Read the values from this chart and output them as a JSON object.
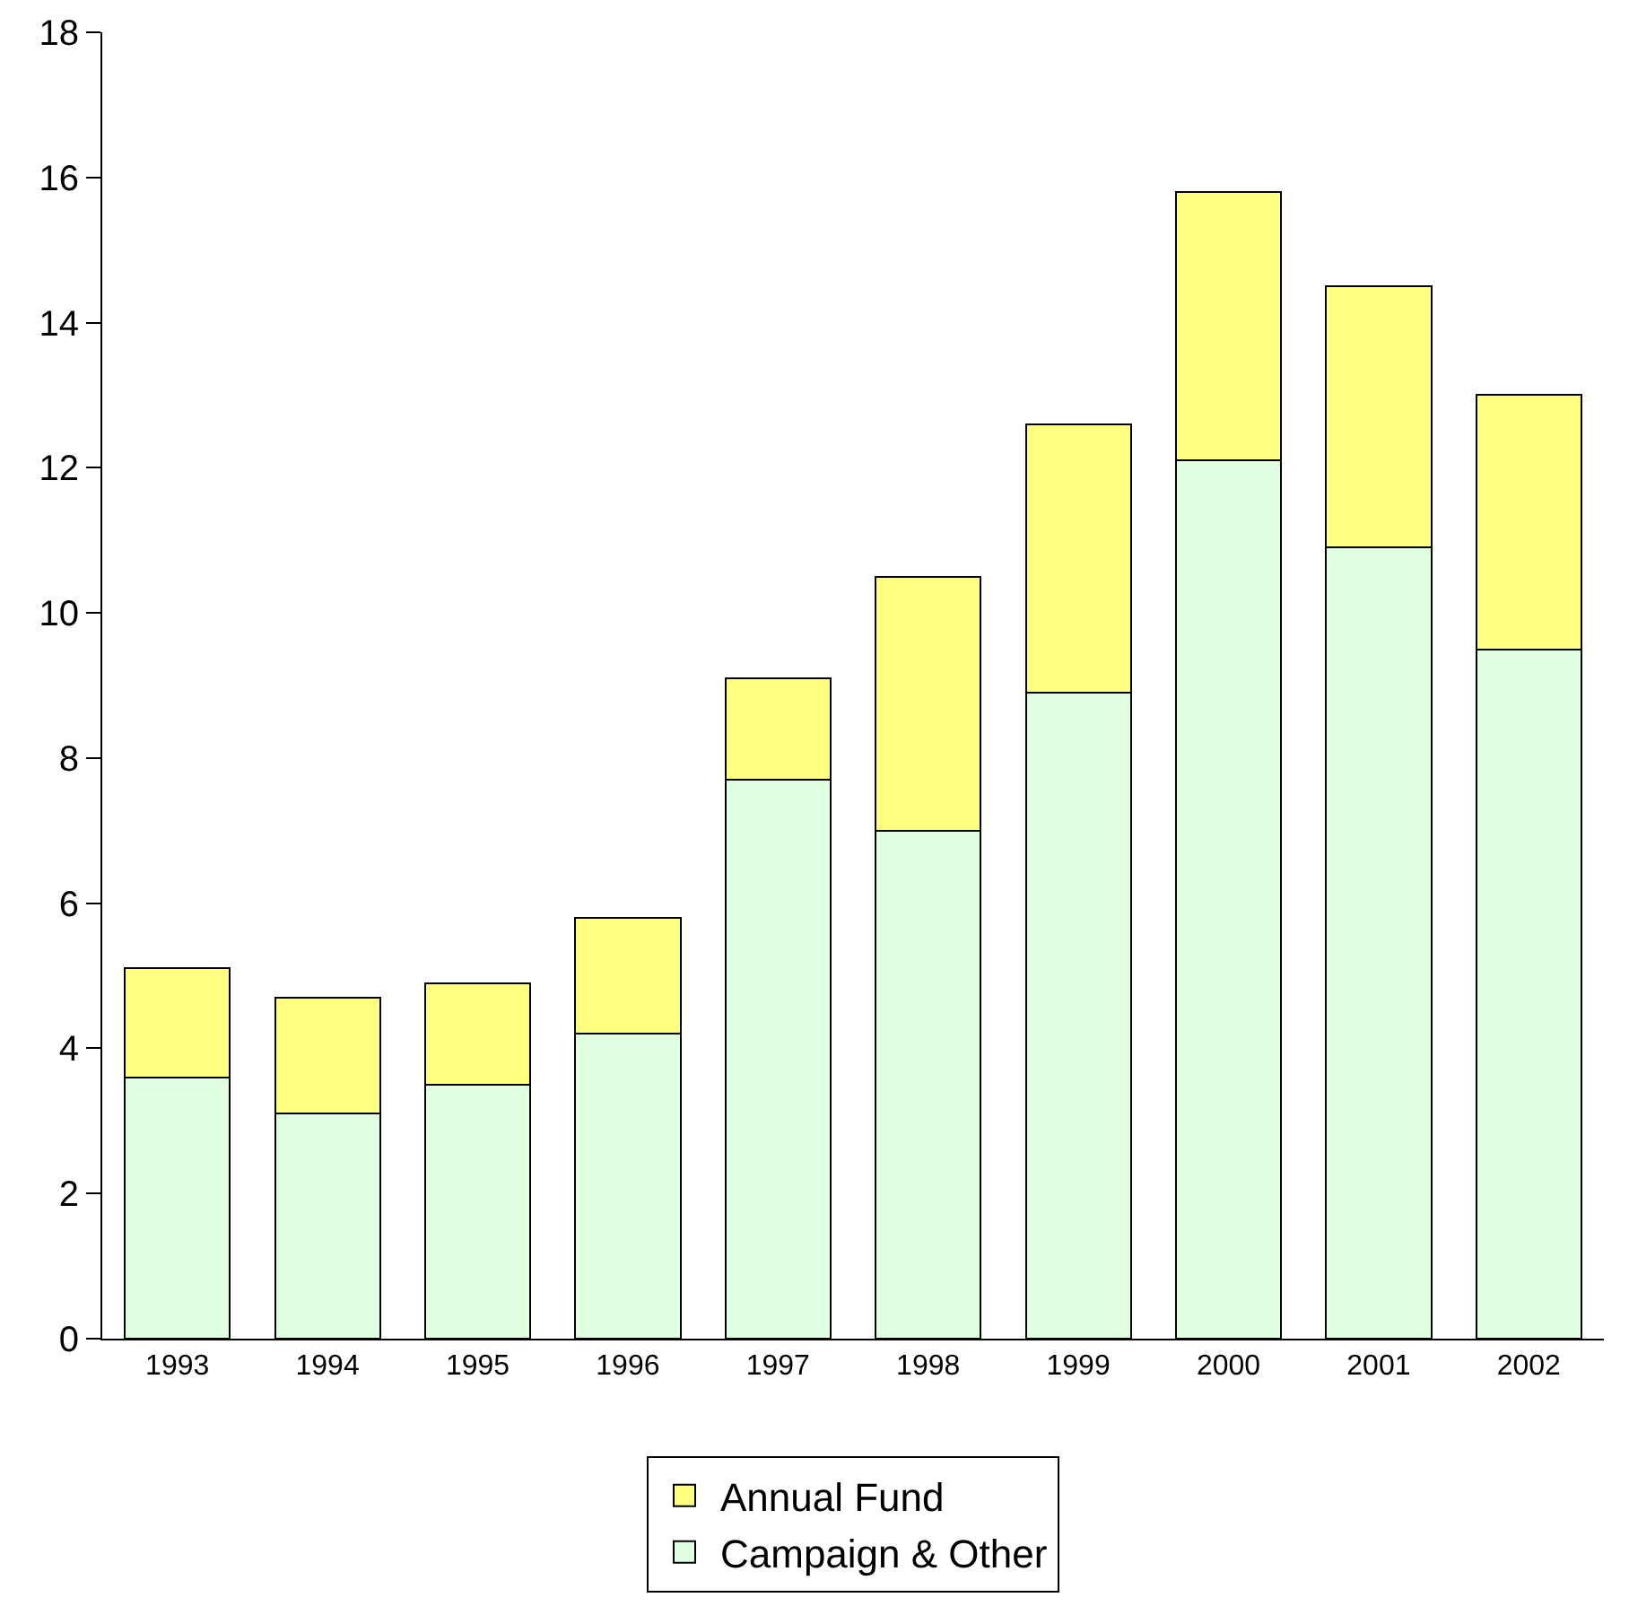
{
  "chart_data": {
    "type": "bar",
    "stacked": true,
    "categories": [
      "1993",
      "1994",
      "1995",
      "1996",
      "1997",
      "1998",
      "1999",
      "2000",
      "2001",
      "2002"
    ],
    "series": [
      {
        "name": "Campaign & Other",
        "color": "#e0ffe0",
        "values": [
          3.6,
          3.1,
          3.5,
          4.2,
          7.7,
          7.0,
          8.9,
          12.1,
          10.9,
          9.5
        ]
      },
      {
        "name": "Annual Fund",
        "color": "#ffff80",
        "values": [
          1.5,
          1.6,
          1.4,
          1.6,
          1.4,
          3.5,
          3.7,
          3.7,
          3.6,
          3.5
        ]
      }
    ],
    "ylim": [
      0,
      18
    ],
    "yticks": [
      0,
      2,
      4,
      6,
      8,
      10,
      12,
      14,
      16,
      18
    ],
    "grid": false,
    "legend": "bottom"
  }
}
